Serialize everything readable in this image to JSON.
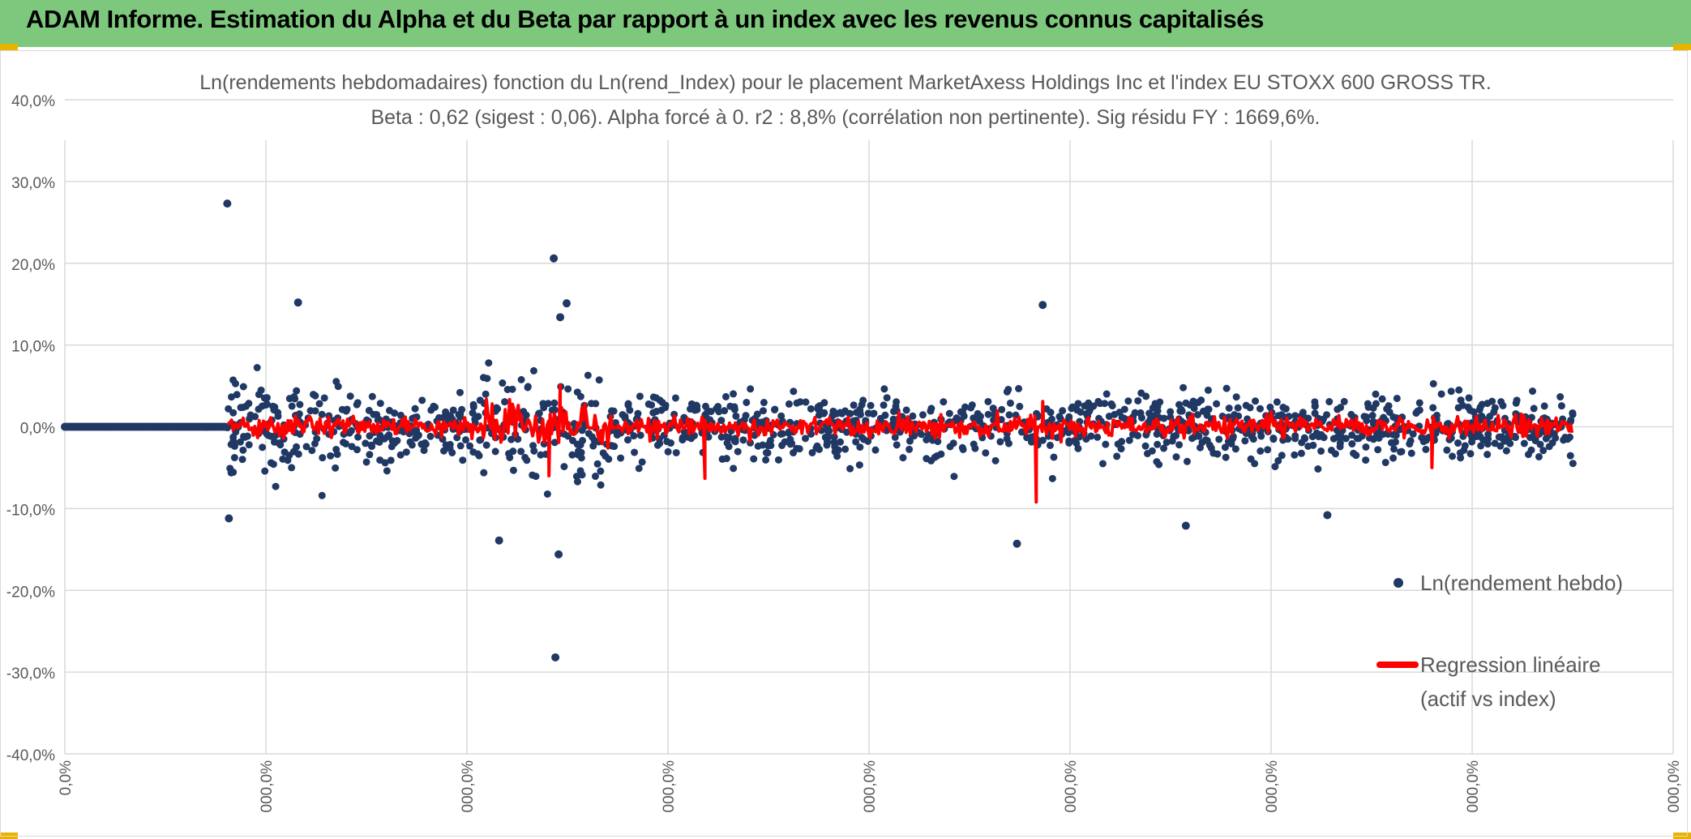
{
  "banner": {
    "title": "ADAM Informe. Estimation du Alpha et du Beta par rapport à un index avec les revenus connus capitalisés"
  },
  "colors": {
    "banner": "#7ec87e",
    "points": "#203864",
    "regression": "#ff0000",
    "grid": "#d9d9d9",
    "text": "#595959"
  },
  "chart_data": {
    "type": "scatter",
    "title": "Ln(rendements hebdomadaires) fonction du Ln(rend_Index) pour le placement MarketAxess Holdings Inc et l'index EU STOXX 600 GROSS TR.",
    "subtitle": "Beta : 0,62 (sigest : 0,06). Alpha forcé à 0. r2 : 8,8% (corrélation non pertinente). Sig résidu FY : 1669,6%.",
    "xlabel": "",
    "ylabel": "",
    "ylim": [
      -40,
      40
    ],
    "y_ticks": [
      "40,0%",
      "30,0%",
      "20,0%",
      "10,0%",
      "0,0%",
      "-10,0%",
      "-20,0%",
      "-30,0%",
      "-40,0%"
    ],
    "x_ticks": [
      "0,0%",
      "000,0%",
      "000,0%",
      "000,0%",
      "000,0%",
      "000,0%",
      "000,0%",
      "000,0%",
      "000,0%"
    ],
    "grid": true,
    "legend_position": "right",
    "series": [
      {
        "name": "Ln(rendement hebdo)",
        "kind": "scatter"
      },
      {
        "name": "Regression linéaire (actif vs index)",
        "kind": "line"
      }
    ],
    "notable_points": [
      {
        "x": 0.101,
        "y": 27.3
      },
      {
        "x": 0.304,
        "y": 20.6
      },
      {
        "x": 0.608,
        "y": 14.9
      },
      {
        "x": 0.145,
        "y": 15.2
      },
      {
        "x": 0.312,
        "y": 15.1
      },
      {
        "x": 0.308,
        "y": 13.4
      },
      {
        "x": 0.305,
        "y": -28.2
      },
      {
        "x": 0.307,
        "y": -15.6
      },
      {
        "x": 0.27,
        "y": -13.9
      },
      {
        "x": 0.592,
        "y": -14.3
      },
      {
        "x": 0.697,
        "y": -12.1
      },
      {
        "x": 0.102,
        "y": -11.2
      },
      {
        "x": 0.785,
        "y": -10.8
      }
    ],
    "regression_spikes": [
      {
        "x": 0.301,
        "y": -6.0
      },
      {
        "x": 0.308,
        "y": 5.1
      },
      {
        "x": 0.398,
        "y": -6.3
      },
      {
        "x": 0.604,
        "y": -9.2
      },
      {
        "x": 0.608,
        "y": 3.1
      },
      {
        "x": 0.85,
        "y": -5.0
      }
    ],
    "flat_segment": {
      "x_from": 0.0,
      "x_to": 0.1,
      "y": 0.0
    }
  },
  "legend": {
    "scatter_label": "Ln(rendement hebdo)",
    "line_label_1": "Regression linéaire",
    "line_label_2": "(actif vs index)"
  }
}
